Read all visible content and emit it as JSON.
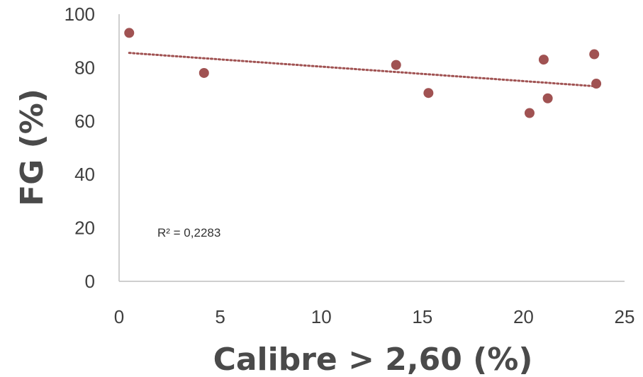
{
  "chart_data": {
    "type": "scatter",
    "title": "",
    "xlabel": "Calibre > 2,60 (%)",
    "ylabel": "FG (%)",
    "xlim": [
      0,
      25
    ],
    "ylim": [
      0,
      100
    ],
    "x_ticks": [
      "0",
      "5",
      "10",
      "15",
      "20",
      "25"
    ],
    "y_ticks": [
      "0",
      "20",
      "40",
      "60",
      "80",
      "100"
    ],
    "grid": false,
    "legend": "none",
    "series": [
      {
        "points": [
          {
            "x": 0.5,
            "y": 93
          },
          {
            "x": 4.2,
            "y": 78
          },
          {
            "x": 13.7,
            "y": 81
          },
          {
            "x": 15.3,
            "y": 70.5
          },
          {
            "x": 20.3,
            "y": 63
          },
          {
            "x": 21.0,
            "y": 83
          },
          {
            "x": 21.2,
            "y": 68.5
          },
          {
            "x": 23.5,
            "y": 85
          },
          {
            "x": 23.6,
            "y": 74
          }
        ]
      }
    ],
    "trendline": {
      "type": "linear",
      "x_range": [
        0.5,
        23.6
      ],
      "y_start": 85.5,
      "y_end": 73,
      "r_squared_label": "R² = 0,2283"
    },
    "colors": {
      "marker": "#a05252",
      "trendline": "#a05252",
      "axis": "#bfbfbf"
    }
  }
}
